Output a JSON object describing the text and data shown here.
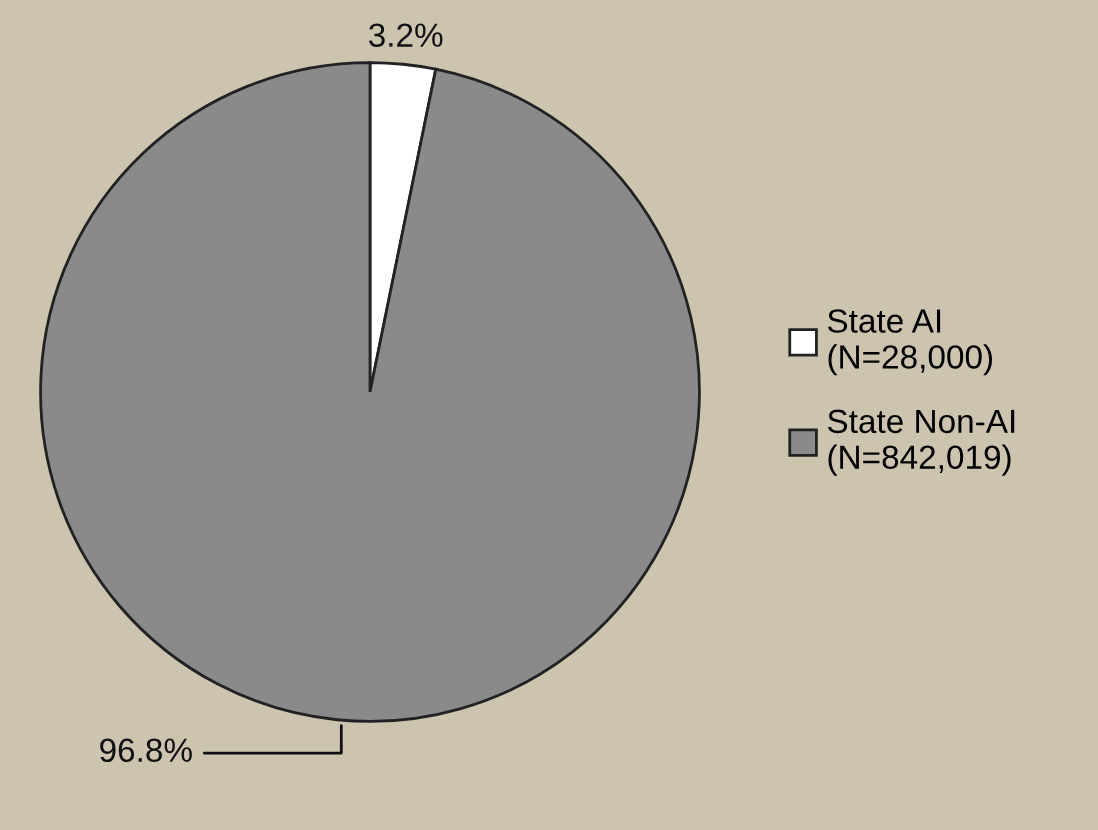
{
  "chart_data": {
    "type": "pie",
    "categories": [
      "State AI\n(N=28,000)",
      "State Non-AI\n(N=842,019)"
    ],
    "values": [
      3.2,
      96.8
    ],
    "colors": [
      "#ffffff",
      "#8a8a8a"
    ],
    "value_labels": [
      "3.2%",
      "96.8%"
    ],
    "legend": "right"
  }
}
